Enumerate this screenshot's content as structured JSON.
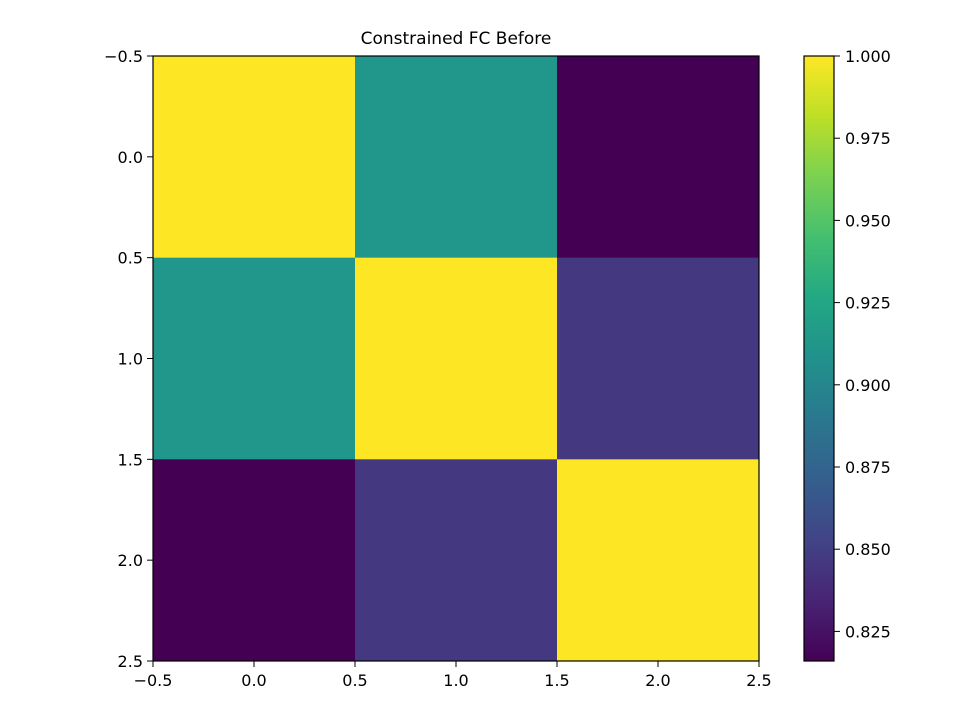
{
  "chart_data": {
    "type": "heatmap",
    "title": "Constrained FC Before",
    "xlabel": "",
    "ylabel": "",
    "matrix": [
      [
        1.0,
        0.912,
        0.816
      ],
      [
        0.912,
        1.0,
        0.846
      ],
      [
        0.816,
        0.846,
        1.0
      ]
    ],
    "xlim": [
      -0.5,
      2.5
    ],
    "ylim": [
      2.5,
      -0.5
    ],
    "x_ticks": [
      -0.5,
      0.0,
      0.5,
      1.0,
      1.5,
      2.0,
      2.5
    ],
    "x_tick_labels": [
      "−0.5",
      "0.0",
      "0.5",
      "1.0",
      "1.5",
      "2.0",
      "2.5"
    ],
    "y_ticks": [
      -0.5,
      0.0,
      0.5,
      1.0,
      1.5,
      2.0,
      2.5
    ],
    "y_tick_labels": [
      "−0.5",
      "0.0",
      "0.5",
      "1.0",
      "1.5",
      "2.0",
      "2.5"
    ],
    "colorbar": {
      "colormap": "viridis",
      "vmin": 0.816,
      "vmax": 1.0,
      "ticks": [
        0.825,
        0.85,
        0.875,
        0.9,
        0.925,
        0.95,
        0.975,
        1.0
      ],
      "tick_labels": [
        "0.825",
        "0.850",
        "0.875",
        "0.900",
        "0.925",
        "0.950",
        "0.975",
        "1.000"
      ]
    },
    "grid": false
  }
}
